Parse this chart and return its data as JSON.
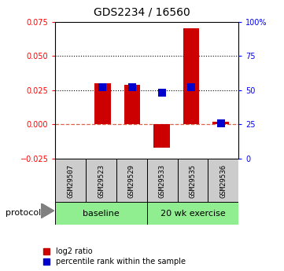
{
  "title": "GDS2234 / 16560",
  "samples": [
    "GSM29507",
    "GSM29523",
    "GSM29529",
    "GSM29533",
    "GSM29535",
    "GSM29536"
  ],
  "log2_ratio": [
    0.0,
    0.03,
    0.029,
    -0.017,
    0.07,
    0.002
  ],
  "percentile_rank": [
    null,
    52,
    52,
    48,
    52,
    26
  ],
  "ylim_left": [
    -0.025,
    0.075
  ],
  "ylim_right": [
    0,
    100
  ],
  "yticks_left": [
    -0.025,
    0.0,
    0.025,
    0.05,
    0.075
  ],
  "yticks_right": [
    0,
    25,
    50,
    75,
    100
  ],
  "hlines_dotted": [
    0.025,
    0.05
  ],
  "hline_dashed": 0.0,
  "bar_color": "#CC0000",
  "dot_color": "#0000CC",
  "bar_width": 0.55,
  "dot_size": 45,
  "background_color": "#ffffff",
  "axis_bg": "#ffffff",
  "legend_items": [
    "log2 ratio",
    "percentile rank within the sample"
  ],
  "protocol_label": "protocol",
  "x_positions": [
    0,
    1,
    2,
    3,
    4,
    5
  ],
  "sample_bg": "#cccccc",
  "proto_color": "#90EE90"
}
